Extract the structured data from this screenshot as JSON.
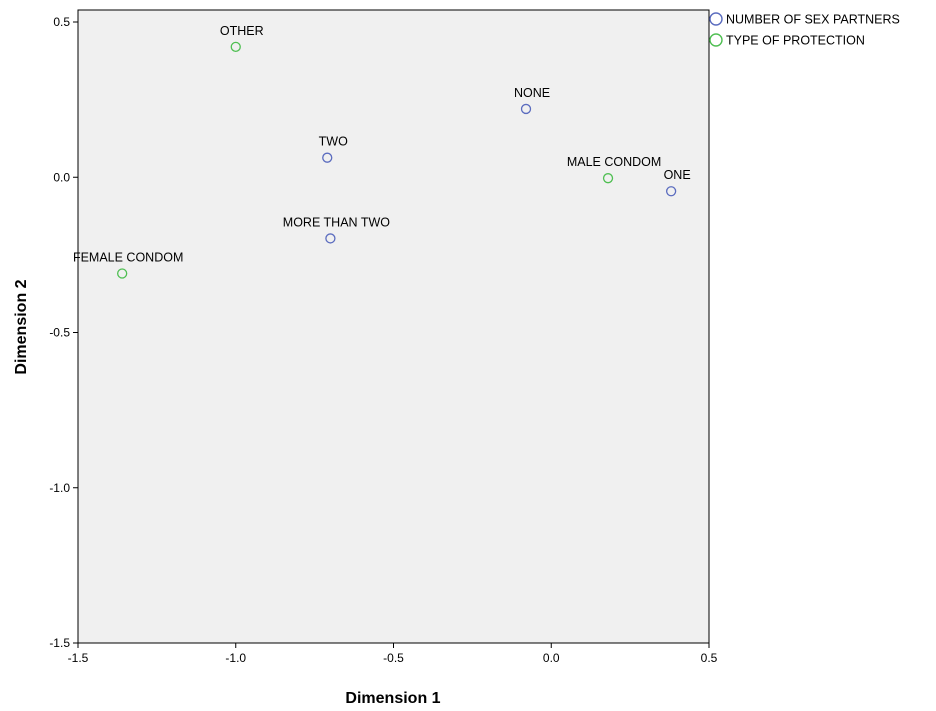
{
  "chart_data": {
    "type": "scatter",
    "xlabel": "Dimension 1",
    "ylabel": "Dimension 2",
    "xlim": [
      -1.5,
      0.5
    ],
    "ylim": [
      -1.5,
      0.5
    ],
    "x_ticks": [
      -1.5,
      -1.0,
      -0.5,
      0.0,
      0.5
    ],
    "x_tick_labels": [
      "-1.5",
      "-1.0",
      "-0.5",
      "0.0",
      "0.5"
    ],
    "y_ticks": [
      0.5,
      0.0,
      -0.5,
      -1.0,
      -1.5
    ],
    "y_tick_labels": [
      "0.5",
      "0.0",
      "-0.5",
      "-1.0",
      "-1.5"
    ],
    "grid": false,
    "legend_position": "right",
    "series": [
      {
        "name": "NUMBER OF SEX PARTNERS",
        "color": "#5b6cbf",
        "points": [
          {
            "label": "NONE",
            "x": -0.08,
            "y": 0.22
          },
          {
            "label": "ONE",
            "x": 0.38,
            "y": -0.045
          },
          {
            "label": "TWO",
            "x": -0.71,
            "y": 0.063
          },
          {
            "label": "MORE THAN TWO",
            "x": -0.7,
            "y": -0.197
          }
        ]
      },
      {
        "name": "TYPE OF PROTECTION",
        "color": "#4fbf52",
        "points": [
          {
            "label": "OTHER",
            "x": -1.0,
            "y": 0.42
          },
          {
            "label": "MALE CONDOM",
            "x": 0.18,
            "y": -0.003
          },
          {
            "label": "FEMALE CONDOM",
            "x": -1.36,
            "y": -0.31
          }
        ]
      }
    ]
  }
}
